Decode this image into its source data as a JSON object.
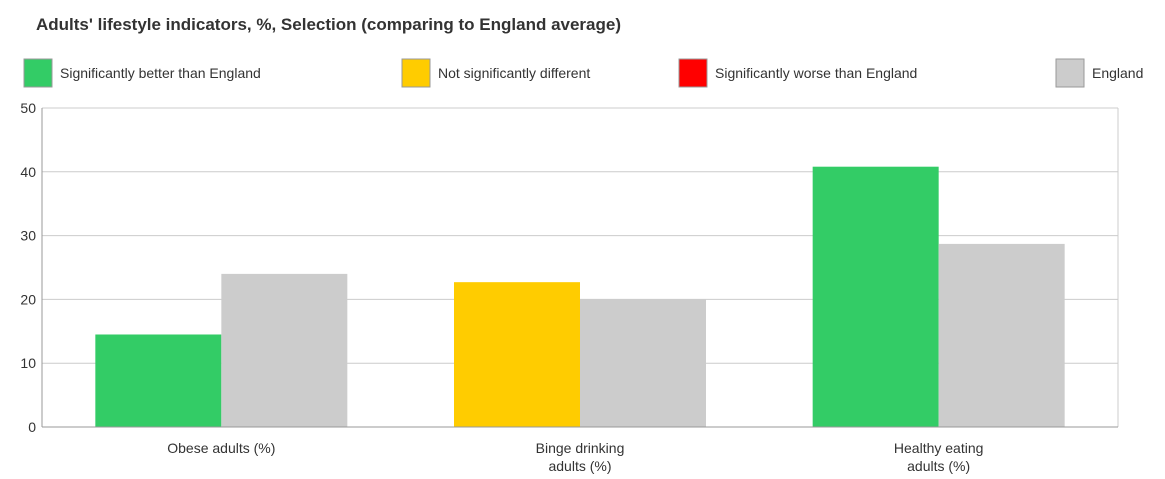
{
  "chart_data": {
    "type": "bar",
    "title": "Adults' lifestyle indicators, %, Selection (comparing to England average)",
    "legend_position": "top",
    "legend": [
      {
        "label": "Significantly better than England",
        "color": "#33cc66"
      },
      {
        "label": "Not significantly different",
        "color": "#ffcc00"
      },
      {
        "label": "Significantly worse than England",
        "color": "#ff0000"
      },
      {
        "label": "England",
        "color": "#cccccc"
      }
    ],
    "categories": [
      [
        "Obese adults (%)"
      ],
      [
        "Binge drinking",
        "adults (%)"
      ],
      [
        "Healthy eating",
        "adults (%)"
      ]
    ],
    "series": [
      {
        "values": [
          14.5,
          22.7,
          40.8
        ],
        "colors": [
          "#33cc66",
          "#ffcc00",
          "#33cc66"
        ]
      },
      {
        "name": "England",
        "values": [
          24.0,
          20.0,
          28.7
        ],
        "colors": [
          "#cccccc",
          "#cccccc",
          "#cccccc"
        ]
      }
    ],
    "ylim": [
      0,
      50
    ],
    "yticks": [
      0,
      10,
      20,
      30,
      40,
      50
    ],
    "grid": true
  }
}
